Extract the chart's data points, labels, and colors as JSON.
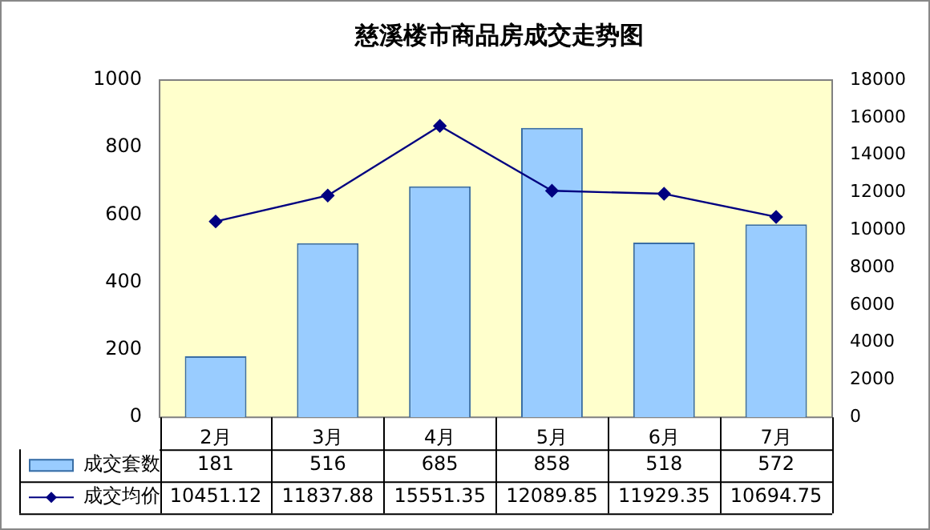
{
  "chart_data": {
    "type": "bar",
    "title": "慈溪楼市商品房成交走势图",
    "categories": [
      "2月",
      "3月",
      "4月",
      "5月",
      "6月",
      "7月"
    ],
    "series": [
      {
        "name": "成交套数",
        "color": "#99ccff",
        "values": [
          181,
          516,
          685,
          858,
          518,
          572
        ]
      },
      {
        "name": "成交均价",
        "type": "line",
        "axis": "y2",
        "color": "#000080",
        "values": [
          10451.12,
          11837.88,
          15551.35,
          12089.85,
          11929.35,
          10694.75
        ]
      }
    ],
    "ylim": [
      0,
      1000
    ],
    "yticks": [
      0,
      200,
      400,
      600,
      800,
      1000
    ],
    "y2lim": [
      0,
      18000
    ],
    "y2ticks": [
      0,
      2000,
      4000,
      6000,
      8000,
      10000,
      12000,
      14000,
      16000,
      18000
    ],
    "grid": false,
    "legend": "bottom",
    "marker": "diamond",
    "data_labels": true
  }
}
